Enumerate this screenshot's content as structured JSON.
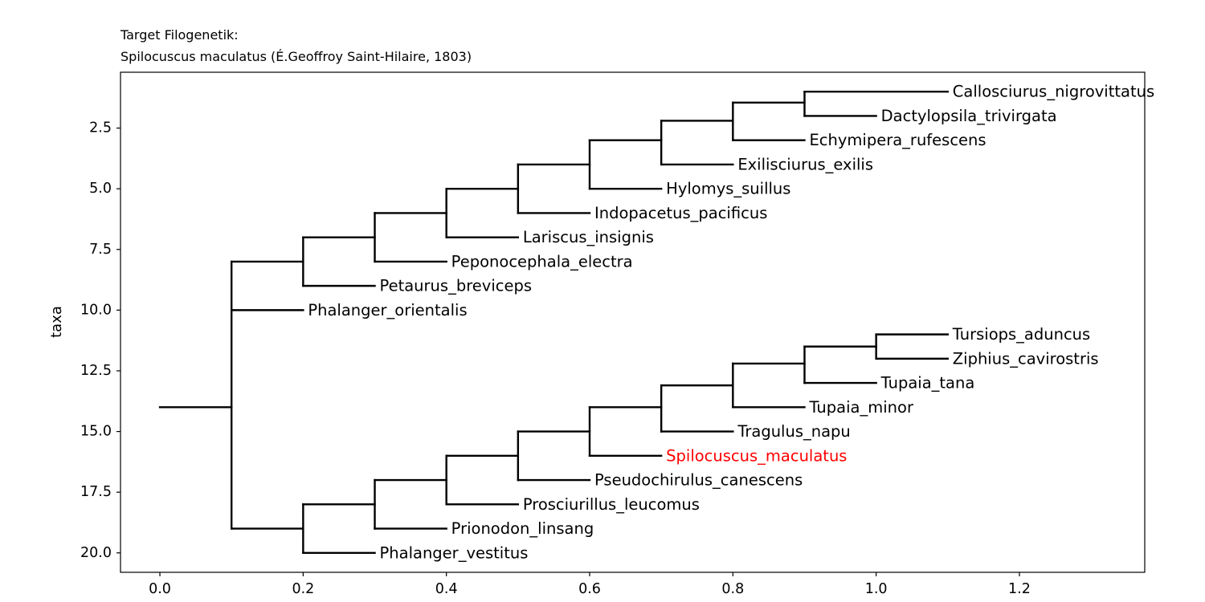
{
  "chart_data": {
    "type": "tree",
    "title_lines": [
      "Target Filogenetik:",
      "Spilocuscus maculatus (É.Geoffroy Saint-Hilaire, 1803)"
    ],
    "xlabel": "",
    "ylabel": "taxa",
    "xlim": [
      -0.055,
      1.375
    ],
    "ylim": [
      20.8,
      0.2
    ],
    "xticks": [
      0.0,
      0.2,
      0.4,
      0.6,
      0.8,
      1.0,
      1.2
    ],
    "xtick_labels": [
      "0.0",
      "0.2",
      "0.4",
      "0.6",
      "0.8",
      "1.0",
      "1.2"
    ],
    "yticks": [
      2.5,
      5.0,
      7.5,
      10.0,
      12.5,
      15.0,
      17.5,
      20.0
    ],
    "ytick_labels": [
      "2.5",
      "5.0",
      "7.5",
      "10.0",
      "12.5",
      "15.0",
      "17.5",
      "20.0"
    ],
    "highlight_color": "#ff0000",
    "line_color": "#000000",
    "highlight_taxon": "Spilocuscus_maculatus",
    "branches": [
      {
        "type": "h",
        "x1": 0.0,
        "x2": 0.1,
        "y": 14.0
      },
      {
        "type": "v",
        "x": 0.1,
        "y1": 8.0,
        "y2": 19.0
      },
      {
        "type": "h",
        "x1": 0.1,
        "x2": 0.2,
        "y": 8.0
      },
      {
        "type": "v",
        "x": 0.2,
        "y1": 7.0,
        "y2": 9.0
      },
      {
        "type": "h",
        "x1": 0.2,
        "x2": 0.3,
        "y": 7.0
      },
      {
        "type": "v",
        "x": 0.3,
        "y1": 6.0,
        "y2": 8.0
      },
      {
        "type": "h",
        "x1": 0.3,
        "x2": 0.4,
        "y": 6.0
      },
      {
        "type": "v",
        "x": 0.4,
        "y1": 5.0,
        "y2": 7.0
      },
      {
        "type": "h",
        "x1": 0.4,
        "x2": 0.5,
        "y": 5.0
      },
      {
        "type": "v",
        "x": 0.5,
        "y1": 4.0,
        "y2": 6.0
      },
      {
        "type": "h",
        "x1": 0.5,
        "x2": 0.6,
        "y": 4.0
      },
      {
        "type": "v",
        "x": 0.6,
        "y1": 3.0,
        "y2": 5.0
      },
      {
        "type": "h",
        "x1": 0.6,
        "x2": 0.7,
        "y": 3.0
      },
      {
        "type": "v",
        "x": 0.7,
        "y1": 2.2,
        "y2": 4.0
      },
      {
        "type": "h",
        "x1": 0.7,
        "x2": 0.8,
        "y": 2.2
      },
      {
        "type": "v",
        "x": 0.8,
        "y1": 1.45,
        "y2": 3.0
      },
      {
        "type": "h",
        "x1": 0.8,
        "x2": 0.9,
        "y": 1.45
      },
      {
        "type": "v",
        "x": 0.9,
        "y1": 1.0,
        "y2": 2.0
      },
      {
        "type": "h",
        "x1": 0.9,
        "x2": 1.1,
        "y": 1.0
      },
      {
        "type": "h",
        "x1": 0.9,
        "x2": 1.0,
        "y": 2.0
      },
      {
        "type": "h",
        "x1": 0.8,
        "x2": 0.9,
        "y": 3.0
      },
      {
        "type": "h",
        "x1": 0.7,
        "x2": 0.8,
        "y": 4.0
      },
      {
        "type": "h",
        "x1": 0.6,
        "x2": 0.7,
        "y": 5.0
      },
      {
        "type": "h",
        "x1": 0.5,
        "x2": 0.6,
        "y": 6.0
      },
      {
        "type": "h",
        "x1": 0.4,
        "x2": 0.5,
        "y": 7.0
      },
      {
        "type": "h",
        "x1": 0.3,
        "x2": 0.4,
        "y": 8.0
      },
      {
        "type": "h",
        "x1": 0.2,
        "x2": 0.3,
        "y": 9.0
      },
      {
        "type": "h",
        "x1": 0.1,
        "x2": 0.2,
        "y": 10.0
      },
      {
        "type": "h",
        "x1": 0.1,
        "x2": 0.2,
        "y": 19.0
      },
      {
        "type": "v",
        "x": 0.2,
        "y1": 18.0,
        "y2": 20.0
      },
      {
        "type": "h",
        "x1": 0.2,
        "x2": 0.3,
        "y": 20.0
      },
      {
        "type": "h",
        "x1": 0.2,
        "x2": 0.3,
        "y": 18.0
      },
      {
        "type": "v",
        "x": 0.3,
        "y1": 17.0,
        "y2": 19.0
      },
      {
        "type": "h",
        "x1": 0.3,
        "x2": 0.4,
        "y": 19.0
      },
      {
        "type": "h",
        "x1": 0.3,
        "x2": 0.4,
        "y": 17.0
      },
      {
        "type": "v",
        "x": 0.4,
        "y1": 16.0,
        "y2": 18.0
      },
      {
        "type": "h",
        "x1": 0.4,
        "x2": 0.5,
        "y": 18.0
      },
      {
        "type": "h",
        "x1": 0.4,
        "x2": 0.5,
        "y": 16.0
      },
      {
        "type": "v",
        "x": 0.5,
        "y1": 15.0,
        "y2": 17.0
      },
      {
        "type": "h",
        "x1": 0.5,
        "x2": 0.6,
        "y": 17.0
      },
      {
        "type": "h",
        "x1": 0.5,
        "x2": 0.6,
        "y": 15.0
      },
      {
        "type": "v",
        "x": 0.6,
        "y1": 14.0,
        "y2": 16.0
      },
      {
        "type": "h",
        "x1": 0.6,
        "x2": 0.7,
        "y": 16.0
      },
      {
        "type": "h",
        "x1": 0.6,
        "x2": 0.7,
        "y": 14.0
      },
      {
        "type": "v",
        "x": 0.7,
        "y1": 13.1,
        "y2": 15.0
      },
      {
        "type": "h",
        "x1": 0.7,
        "x2": 0.8,
        "y": 15.0
      },
      {
        "type": "h",
        "x1": 0.7,
        "x2": 0.8,
        "y": 13.1
      },
      {
        "type": "v",
        "x": 0.8,
        "y1": 12.2,
        "y2": 14.0
      },
      {
        "type": "h",
        "x1": 0.8,
        "x2": 0.9,
        "y": 14.0
      },
      {
        "type": "h",
        "x1": 0.8,
        "x2": 0.9,
        "y": 12.2
      },
      {
        "type": "v",
        "x": 0.9,
        "y1": 11.5,
        "y2": 13.0
      },
      {
        "type": "h",
        "x1": 0.9,
        "x2": 1.0,
        "y": 13.0
      },
      {
        "type": "h",
        "x1": 0.9,
        "x2": 1.0,
        "y": 11.5
      },
      {
        "type": "v",
        "x": 1.0,
        "y1": 11.0,
        "y2": 12.0
      },
      {
        "type": "h",
        "x1": 1.0,
        "x2": 1.1,
        "y": 11.0
      },
      {
        "type": "h",
        "x1": 1.0,
        "x2": 1.1,
        "y": 12.0
      }
    ],
    "leaves": [
      {
        "name": "Callosciurus_nigrovittatus",
        "x": 1.1,
        "y": 1.0
      },
      {
        "name": "Dactylopsila_trivirgata",
        "x": 1.0,
        "y": 2.0
      },
      {
        "name": "Echymipera_rufescens",
        "x": 0.9,
        "y": 3.0
      },
      {
        "name": "Exilisciurus_exilis",
        "x": 0.8,
        "y": 4.0
      },
      {
        "name": "Hylomys_suillus",
        "x": 0.7,
        "y": 5.0
      },
      {
        "name": "Indopacetus_pacificus",
        "x": 0.6,
        "y": 6.0
      },
      {
        "name": "Lariscus_insignis",
        "x": 0.5,
        "y": 7.0
      },
      {
        "name": "Peponocephala_electra",
        "x": 0.4,
        "y": 8.0
      },
      {
        "name": "Petaurus_breviceps",
        "x": 0.3,
        "y": 9.0
      },
      {
        "name": "Phalanger_orientalis",
        "x": 0.2,
        "y": 10.0
      },
      {
        "name": "Tursiops_aduncus",
        "x": 1.1,
        "y": 11.0
      },
      {
        "name": "Ziphius_cavirostris",
        "x": 1.1,
        "y": 12.0
      },
      {
        "name": "Tupaia_tana",
        "x": 1.0,
        "y": 13.0
      },
      {
        "name": "Tupaia_minor",
        "x": 0.9,
        "y": 14.0
      },
      {
        "name": "Tragulus_napu",
        "x": 0.8,
        "y": 15.0
      },
      {
        "name": "Spilocuscus_maculatus",
        "x": 0.7,
        "y": 16.0
      },
      {
        "name": "Pseudochirulus_canescens",
        "x": 0.6,
        "y": 17.0
      },
      {
        "name": "Prosciurillus_leucomus",
        "x": 0.5,
        "y": 18.0
      },
      {
        "name": "Prionodon_linsang",
        "x": 0.4,
        "y": 19.0
      },
      {
        "name": "Phalanger_vestitus",
        "x": 0.3,
        "y": 20.0
      }
    ]
  }
}
